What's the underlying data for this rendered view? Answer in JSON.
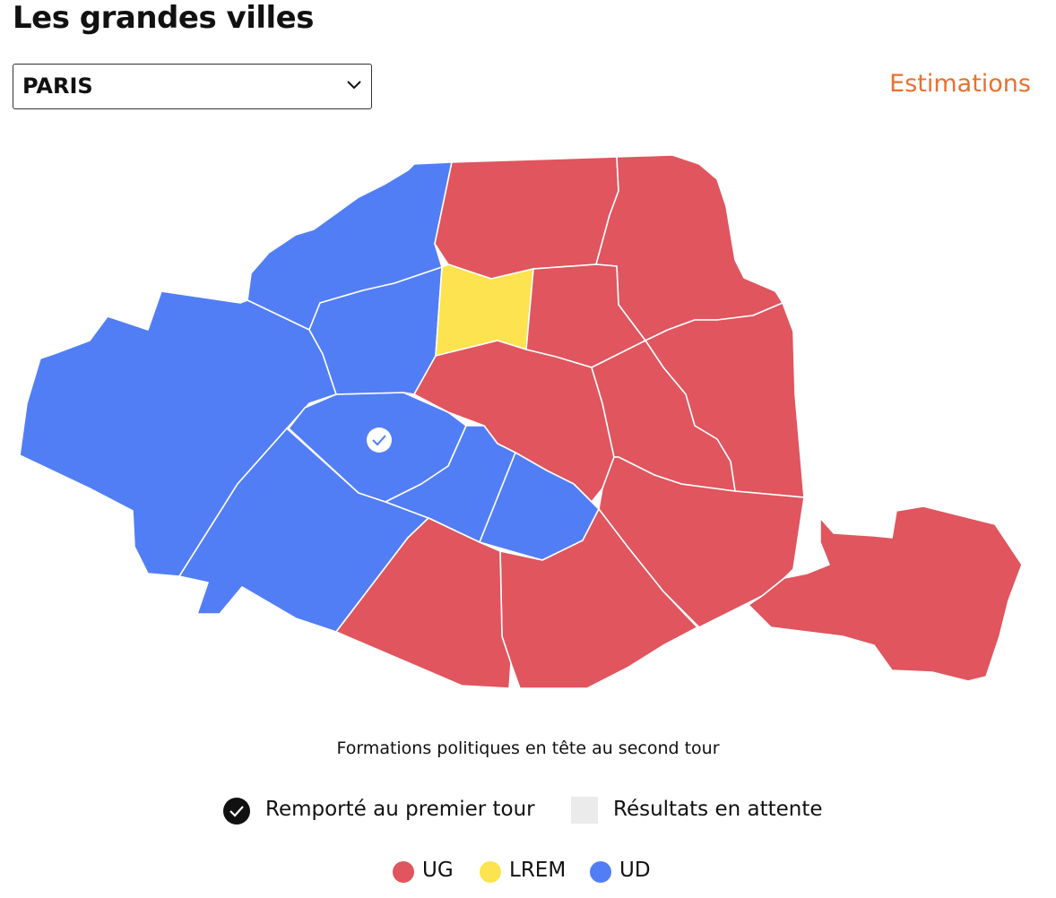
{
  "header": {
    "title": "Les grandes villes"
  },
  "controls": {
    "city_select": "PARIS",
    "estimations_link": "Estimations"
  },
  "map": {
    "regions": [
      {
        "party": "UD"
      },
      {
        "party": "UG"
      },
      {
        "party": "UG"
      },
      {
        "party": "UG"
      },
      {
        "party": "UD"
      },
      {
        "party": "UD"
      },
      {
        "party": "UD"
      },
      {
        "party": "UD"
      },
      {
        "party": "LREM"
      },
      {
        "party": "UG"
      },
      {
        "party": "UG"
      },
      {
        "party": "UG"
      },
      {
        "party": "UD"
      },
      {
        "party": "UD"
      },
      {
        "party": "UG"
      },
      {
        "party": "UG"
      },
      {
        "party": "UG"
      },
      {
        "party": "UG"
      }
    ]
  },
  "legend": {
    "title": "Formations politiques en tête au second tour",
    "status": [
      "Remporté au premier tour",
      "Résultats en attente"
    ],
    "parties": [
      {
        "name": "UG",
        "color": "#e0555e"
      },
      {
        "name": "LREM",
        "color": "#fce34f"
      },
      {
        "name": "UD",
        "color": "#527ef5"
      }
    ]
  }
}
